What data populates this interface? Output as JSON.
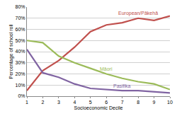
{
  "chart_data": {
    "type": "line",
    "x_label": "Socioeconomic Decile",
    "y_label": "Percentage of school roll",
    "x": [
      1,
      2,
      3,
      4,
      5,
      6,
      7,
      8,
      9,
      10
    ],
    "series": [
      {
        "name": "European/Pākehā",
        "color": "#c0504d",
        "values": [
          5,
          23,
          32,
          44,
          58,
          64,
          66,
          70,
          68,
          72
        ]
      },
      {
        "name": "Māori",
        "color": "#9bbb59",
        "values": [
          50,
          48,
          36,
          30,
          25,
          20,
          16,
          13,
          11,
          6
        ]
      },
      {
        "name": "Pasifika",
        "color": "#8064a2",
        "values": [
          42,
          21,
          17,
          11,
          7,
          6,
          5,
          5,
          4,
          3
        ]
      }
    ],
    "xlim": [
      1,
      10
    ],
    "xticks": [
      1,
      2,
      3,
      4,
      5,
      6,
      7,
      8,
      9,
      10
    ],
    "ylim": [
      0,
      80
    ],
    "yticks": [
      {
        "value": 0,
        "label": "0%"
      },
      {
        "value": 10,
        "label": "10%"
      },
      {
        "value": 20,
        "label": "20%"
      },
      {
        "value": 30,
        "label": "30%"
      },
      {
        "value": 40,
        "label": "40%"
      },
      {
        "value": 50,
        "label": "50%"
      },
      {
        "value": 60,
        "label": "60%"
      },
      {
        "value": 70,
        "label": "70%"
      },
      {
        "value": 80,
        "label": "80%"
      }
    ],
    "grid": true
  }
}
